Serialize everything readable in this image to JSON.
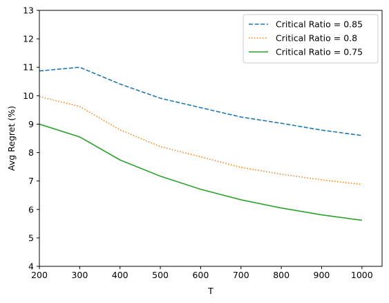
{
  "chart_data": {
    "type": "line",
    "xlabel": "T",
    "ylabel": "Avg Regret (%)",
    "xlim": [
      200,
      1050
    ],
    "ylim": [
      4,
      13
    ],
    "xticks": [
      200,
      300,
      400,
      500,
      600,
      700,
      800,
      900,
      1000
    ],
    "yticks": [
      4,
      5,
      6,
      7,
      8,
      9,
      10,
      11,
      12,
      13
    ],
    "grid": false,
    "legend_position": "top-right",
    "x": [
      200,
      300,
      400,
      500,
      600,
      700,
      800,
      900,
      1000
    ],
    "series": [
      {
        "name": "Critical Ratio = 0.85",
        "color": "#1f77b4",
        "style": "dashed",
        "values": [
          10.87,
          11.0,
          10.41,
          9.91,
          9.58,
          9.25,
          9.03,
          8.79,
          8.6
        ]
      },
      {
        "name": "Critical Ratio = 0.8",
        "color": "#ff7f0e",
        "style": "dotted",
        "values": [
          9.97,
          9.62,
          8.8,
          8.21,
          7.85,
          7.48,
          7.24,
          7.04,
          6.88
        ]
      },
      {
        "name": "Critical Ratio = 0.75",
        "color": "#2ca02c",
        "style": "solid",
        "values": [
          9.0,
          8.55,
          7.74,
          7.17,
          6.71,
          6.34,
          6.05,
          5.81,
          5.62
        ]
      }
    ]
  }
}
